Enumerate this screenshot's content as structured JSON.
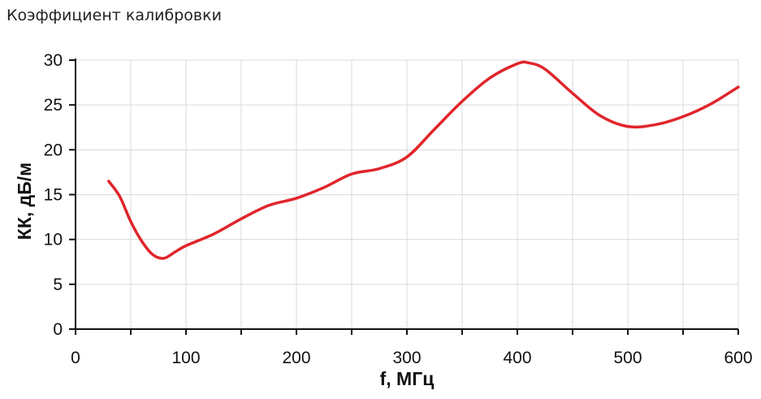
{
  "chart_data": {
    "type": "line",
    "title": "Коэффициент калибровки",
    "xlabel": "f, МГц",
    "ylabel": "КК, дБ/м",
    "xlim": [
      0,
      600
    ],
    "ylim": [
      0,
      30
    ],
    "x_ticks": [
      0,
      100,
      200,
      300,
      400,
      500,
      600
    ],
    "y_ticks": [
      0,
      5,
      10,
      15,
      20,
      25,
      30
    ],
    "grid": true,
    "legend": "none",
    "series": [
      {
        "color": "#e0252b",
        "x": [
          30,
          40,
          50,
          60,
          70,
          80,
          90,
          100,
          125,
          150,
          175,
          200,
          225,
          250,
          275,
          300,
          325,
          350,
          375,
          400,
          410,
          425,
          450,
          475,
          500,
          525,
          550,
          575,
          600
        ],
        "y": [
          16.5,
          14.8,
          12.0,
          9.8,
          8.3,
          7.9,
          8.6,
          9.3,
          10.6,
          12.3,
          13.8,
          14.6,
          15.8,
          17.3,
          17.9,
          19.2,
          22.3,
          25.4,
          28.0,
          29.6,
          29.7,
          29.0,
          26.3,
          23.8,
          22.6,
          22.8,
          23.7,
          25.1,
          27.0
        ]
      }
    ]
  }
}
